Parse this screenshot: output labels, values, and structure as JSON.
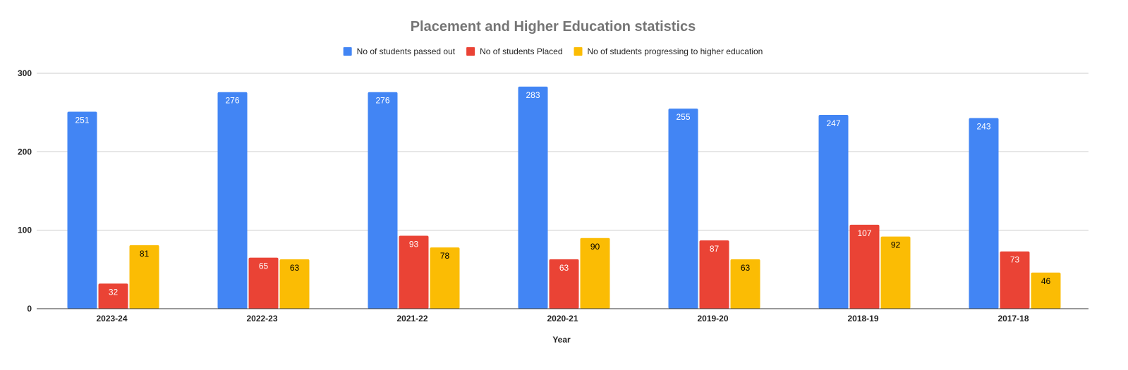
{
  "chart_data": {
    "type": "bar",
    "title": "Placement and Higher Education statistics",
    "xlabel": "Year",
    "ylabel": "",
    "categories": [
      "2023-24",
      "2022-23",
      "2021-22",
      "2020-21",
      "2019-20",
      "2018-19",
      "2017-18"
    ],
    "series": [
      {
        "name": "No of students passed out",
        "color": "#4285f4",
        "label_color": "#ffffff",
        "values": [
          251,
          276,
          276,
          283,
          255,
          247,
          243
        ]
      },
      {
        "name": "No of students Placed",
        "color": "#ea4335",
        "label_color": "#ffffff",
        "values": [
          32,
          65,
          93,
          63,
          87,
          107,
          73
        ]
      },
      {
        "name": "No of students progressing to higher education",
        "color": "#fbbc04",
        "label_color": "#000000",
        "values": [
          81,
          63,
          78,
          90,
          63,
          92,
          46
        ]
      }
    ],
    "ylim": [
      0,
      300
    ],
    "yticks": [
      0,
      100,
      200,
      300
    ],
    "grid": true,
    "legend_position": "top",
    "data_labels": true
  }
}
